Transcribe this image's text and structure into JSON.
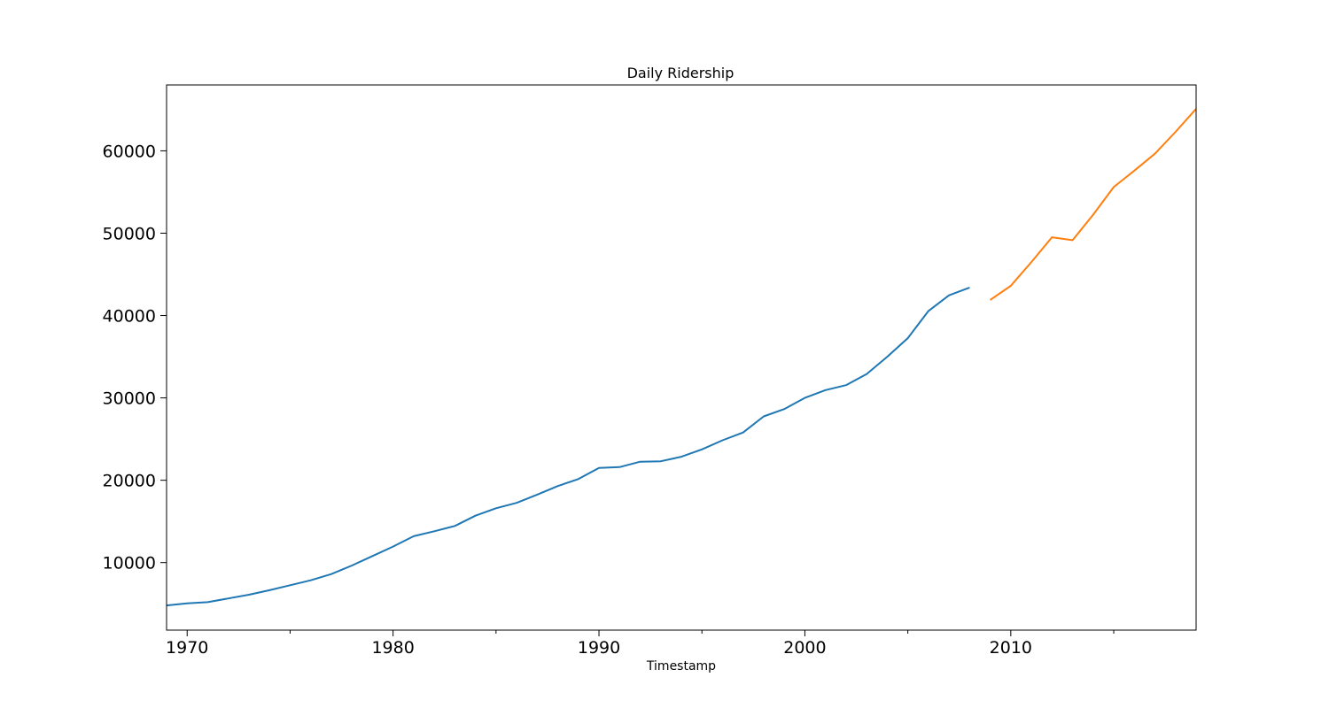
{
  "chart_data": {
    "type": "line",
    "title": "Daily Ridership",
    "xlabel": "Timestamp",
    "ylabel": "",
    "xlim": [
      1969,
      2019
    ],
    "ylim": [
      1800,
      68000
    ],
    "x_ticks_major": [
      1970,
      1980,
      1990,
      2000,
      2010
    ],
    "x_ticks_minor": [
      1975,
      1985,
      1995,
      2005,
      2015
    ],
    "y_ticks": [
      10000,
      20000,
      30000,
      40000,
      50000,
      60000
    ],
    "grid": false,
    "legend": "none",
    "series": [
      {
        "color": "#1f77b4",
        "x": [
          1969,
          1970,
          1971,
          1972,
          1973,
          1974,
          1975,
          1976,
          1977,
          1978,
          1979,
          1980,
          1981,
          1982,
          1983,
          1984,
          1985,
          1986,
          1987,
          1988,
          1989,
          1990,
          1991,
          1992,
          1993,
          1994,
          1995,
          1996,
          1997,
          1998,
          1999,
          2000,
          2001,
          2002,
          2003,
          2004,
          2005,
          2006,
          2007,
          2008
        ],
        "values": [
          4800,
          5050,
          5200,
          5650,
          6100,
          6650,
          7250,
          7850,
          8600,
          9650,
          10800,
          11950,
          13200,
          13800,
          14450,
          15700,
          16600,
          17250,
          18250,
          19300,
          20150,
          21500,
          21600,
          22250,
          22300,
          22850,
          23750,
          24850,
          25800,
          27750,
          28650,
          30000,
          30950,
          31550,
          32900,
          35000,
          37250,
          40550,
          42450,
          43400
        ]
      },
      {
        "color": "#ff7f0e",
        "x": [
          2009,
          2010,
          2011,
          2012,
          2013,
          2014,
          2015,
          2016,
          2017,
          2018,
          2019
        ],
        "values": [
          41900,
          43600,
          46500,
          49500,
          49150,
          52250,
          55600,
          57600,
          59650,
          62300,
          65100
        ]
      }
    ]
  }
}
